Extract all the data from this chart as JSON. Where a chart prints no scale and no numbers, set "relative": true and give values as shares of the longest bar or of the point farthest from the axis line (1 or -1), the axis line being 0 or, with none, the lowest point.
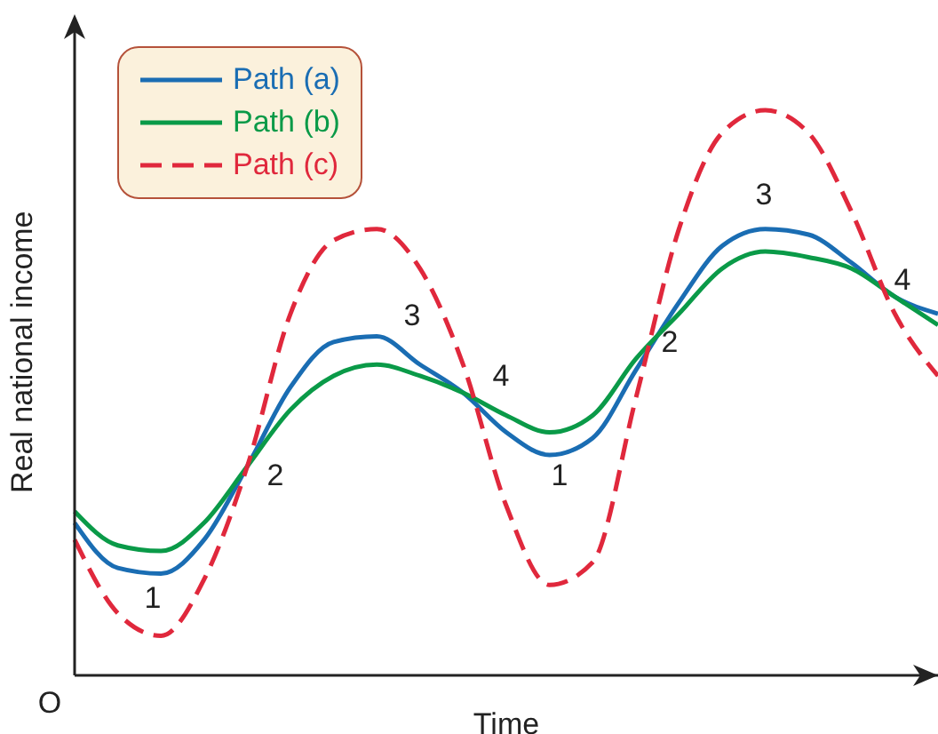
{
  "chart_data": {
    "type": "line",
    "relative": true,
    "xlabel": "Time",
    "ylabel": "Real national income",
    "legend": "top left",
    "marker": "none",
    "categories": [
      null,
      null,
      null,
      null,
      null,
      null,
      null,
      null,
      null,
      null,
      null,
      null,
      null,
      null,
      null,
      null,
      null,
      null,
      null,
      null,
      null
    ],
    "series": [
      {
        "name": "Path (a)",
        "color": "#1a6db3",
        "line_style": "solid",
        "values": [
          0.27,
          0.19,
          0.18,
          0.24,
          0.37,
          0.51,
          0.59,
          0.6,
          0.55,
          0.5,
          0.43,
          0.39,
          0.42,
          0.54,
          0.66,
          0.76,
          0.79,
          0.78,
          0.73,
          0.67,
          0.64
        ]
      },
      {
        "name": "Path (b)",
        "color": "#0a9a48",
        "line_style": "solid",
        "values": [
          0.29,
          0.23,
          0.22,
          0.27,
          0.37,
          0.47,
          0.53,
          0.55,
          0.53,
          0.5,
          0.46,
          0.43,
          0.46,
          0.56,
          0.64,
          0.72,
          0.75,
          0.74,
          0.72,
          0.67,
          0.62
        ]
      },
      {
        "name": "Path (c)",
        "color": "#e0283c",
        "line_style": "dashed",
        "values": [
          0.24,
          0.11,
          0.07,
          0.17,
          0.37,
          0.64,
          0.77,
          0.79,
          0.72,
          0.55,
          0.3,
          0.16,
          0.2,
          0.49,
          0.79,
          0.96,
          1,
          0.96,
          0.82,
          0.64,
          0.53
        ]
      }
    ],
    "annotations": [
      "1",
      "2",
      "3",
      "4",
      "1",
      "2",
      "3",
      "4",
      "O"
    ]
  }
}
